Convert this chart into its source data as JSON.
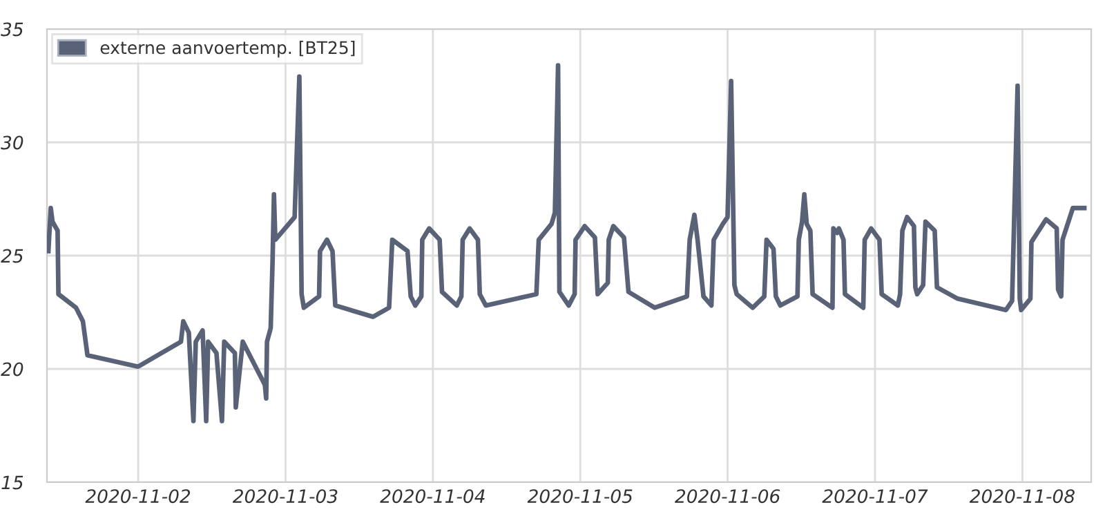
{
  "chart_data": {
    "type": "line",
    "x": [
      "2020-11-01T09:23",
      "2020-11-01T09:46",
      "2020-11-01T10:03",
      "2020-11-01T10:53",
      "2020-11-01T11:01",
      "2020-11-01T13:53",
      "2020-11-01T15:00",
      "2020-11-01T15:45",
      "2020-11-02T00:00",
      "2020-11-02T06:58",
      "2020-11-02T07:21",
      "2020-11-02T08:15",
      "2020-11-02T09:00",
      "2020-11-02T09:23",
      "2020-11-02T10:30",
      "2020-11-02T11:05",
      "2020-11-02T11:24",
      "2020-11-02T12:45",
      "2020-11-02T13:39",
      "2020-11-02T14:01",
      "2020-11-02T15:45",
      "2020-11-02T15:54",
      "2020-11-02T17:02",
      "2020-11-02T20:38",
      "2020-11-02T20:51",
      "2020-11-02T20:59",
      "2020-11-02T21:35",
      "2020-11-02T21:53",
      "2020-11-02T22:07",
      "2020-11-02T22:20",
      "2020-11-03T01:29",
      "2020-11-03T02:15",
      "2020-11-03T02:37",
      "2020-11-03T02:59",
      "2020-11-03T05:28",
      "2020-11-03T05:37",
      "2020-11-03T06:45",
      "2020-11-03T07:39",
      "2020-11-03T08:06",
      "2020-11-03T14:14",
      "2020-11-03T16:52",
      "2020-11-03T17:23",
      "2020-11-03T19:52",
      "2020-11-03T20:23",
      "2020-11-03T21:08",
      "2020-11-03T22:07",
      "2020-11-03T22:16",
      "2020-11-03T23:23",
      "2020-11-04T01:06",
      "2020-11-04T01:29",
      "2020-11-04T03:53",
      "2020-11-04T04:38",
      "2020-11-04T04:51",
      "2020-11-04T05:59",
      "2020-11-04T07:20",
      "2020-11-04T07:38",
      "2020-11-04T08:37",
      "2020-11-04T16:51",
      "2020-11-04T17:14",
      "2020-11-04T19:19",
      "2020-11-04T19:52",
      "2020-11-04T20:23",
      "2020-11-04T20:36",
      "2020-11-04T22:07",
      "2020-11-04T23:05",
      "2020-11-04T23:14",
      "2020-11-05T00:43",
      "2020-11-05T02:23",
      "2020-11-05T02:50",
      "2020-11-05T04:29",
      "2020-11-05T04:38",
      "2020-11-05T05:23",
      "2020-11-05T07:07",
      "2020-11-05T07:51",
      "2020-11-05T12:07",
      "2020-11-05T17:22",
      "2020-11-05T17:49",
      "2020-11-05T18:35",
      "2020-11-05T19:06",
      "2020-11-05T20:04",
      "2020-11-05T21:21",
      "2020-11-05T21:44",
      "2020-11-05T23:13",
      "2020-11-05T23:59",
      "2020-11-06T00:34",
      "2020-11-06T01:06",
      "2020-11-06T01:28",
      "2020-11-06T04:05",
      "2020-11-06T05:58",
      "2020-11-06T06:20",
      "2020-11-06T07:28",
      "2020-11-06T07:51",
      "2020-11-06T08:35",
      "2020-11-06T11:22",
      "2020-11-06T11:35",
      "2020-11-06T12:07",
      "2020-11-06T12:29",
      "2020-11-06T12:52",
      "2020-11-06T13:28",
      "2020-11-06T13:50",
      "2020-11-06T17:04",
      "2020-11-06T17:13",
      "2020-11-06T17:49",
      "2020-11-06T18:07",
      "2020-11-06T18:52",
      "2020-11-06T19:06",
      "2020-11-06T22:05",
      "2020-11-06T22:19",
      "2020-11-06T23:22",
      "2020-11-07T00:43",
      "2020-11-07T01:05",
      "2020-11-07T03:43",
      "2020-11-07T04:05",
      "2020-11-07T04:27",
      "2020-11-07T05:13",
      "2020-11-07T06:20",
      "2020-11-07T06:34",
      "2020-11-07T06:52",
      "2020-11-07T07:50",
      "2020-11-07T08:13",
      "2020-11-07T09:43",
      "2020-11-07T10:05",
      "2020-11-07T13:27",
      "2020-11-07T21:19",
      "2020-11-07T22:19",
      "2020-11-07T23:13",
      "2020-11-07T23:34",
      "2020-11-07T23:48",
      "2020-11-08T01:18",
      "2020-11-08T01:28",
      "2020-11-08T03:51",
      "2020-11-08T05:35",
      "2020-11-08T05:49",
      "2020-11-08T06:19",
      "2020-11-08T06:32",
      "2020-11-08T08:13",
      "2020-11-08T10:05"
    ],
    "series": [
      {
        "name": "externe aanvoertemp. [BT25]",
        "color": "#5a6278",
        "values": [
          25.2,
          27.1,
          26.5,
          26.1,
          23.3,
          22.7,
          22.1,
          20.6,
          20.1,
          21.2,
          22.1,
          21.6,
          17.7,
          21.2,
          21.7,
          17.7,
          21.2,
          20.7,
          17.7,
          21.2,
          20.7,
          18.3,
          21.2,
          19.3,
          18.7,
          21.2,
          21.8,
          24.7,
          27.7,
          25.7,
          26.7,
          32.9,
          23.3,
          22.7,
          23.2,
          25.2,
          25.7,
          25.2,
          22.8,
          22.3,
          22.7,
          25.7,
          25.2,
          23.2,
          22.8,
          23.2,
          25.7,
          26.2,
          25.7,
          23.4,
          22.8,
          23.2,
          25.7,
          26.2,
          25.7,
          23.3,
          22.8,
          23.3,
          25.7,
          26.4,
          26.9,
          33.4,
          23.4,
          22.8,
          23.3,
          25.7,
          26.3,
          25.8,
          23.3,
          23.8,
          25.7,
          26.3,
          25.8,
          23.4,
          22.7,
          23.2,
          25.7,
          26.8,
          25.7,
          23.2,
          22.8,
          25.7,
          26.4,
          26.7,
          32.7,
          23.7,
          23.3,
          22.7,
          23.2,
          25.7,
          25.3,
          23.2,
          22.8,
          23.2,
          25.7,
          26.5,
          27.7,
          26.4,
          26.1,
          23.3,
          22.7,
          26.2,
          26.0,
          26.2,
          25.7,
          23.3,
          22.7,
          25.7,
          26.2,
          25.7,
          23.3,
          22.8,
          23.3,
          26.1,
          26.7,
          26.3,
          23.6,
          23.3,
          23.7,
          26.5,
          26.1,
          23.6,
          23.1,
          22.6,
          23.0,
          32.5,
          23.1,
          22.6,
          23.1,
          25.6,
          26.6,
          26.2,
          23.5,
          23.2,
          25.7,
          27.1,
          27.1
        ]
      }
    ],
    "xlim": [
      "2020-11-01T09:09",
      "2020-11-08T11:12"
    ],
    "xticks": [
      {
        "value": "2020-11-02",
        "label": "2020-11-02"
      },
      {
        "value": "2020-11-03",
        "label": "2020-11-03"
      },
      {
        "value": "2020-11-04",
        "label": "2020-11-04"
      },
      {
        "value": "2020-11-05",
        "label": "2020-11-05"
      },
      {
        "value": "2020-11-06",
        "label": "2020-11-06"
      },
      {
        "value": "2020-11-07",
        "label": "2020-11-07"
      },
      {
        "value": "2020-11-08",
        "label": "2020-11-08"
      }
    ],
    "ylim": [
      15,
      35
    ],
    "yticks": [
      15,
      20,
      25,
      30,
      35
    ],
    "grid": true,
    "legend": "top left",
    "marker": "none",
    "line_style": "solid"
  }
}
